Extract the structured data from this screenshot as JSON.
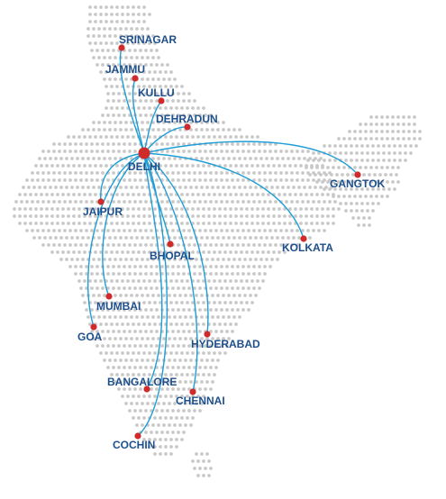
{
  "map": {
    "colors": {
      "route": "#1f9ed6",
      "city_dot": "#d02b2b",
      "label": "#1d4f8c",
      "land_dots": "#c9c9c9"
    },
    "hub": {
      "id": "delhi",
      "name": "DELHI"
    },
    "cities": [
      {
        "id": "srinagar",
        "name": "SRINAGAR"
      },
      {
        "id": "jammu",
        "name": "JAMMU"
      },
      {
        "id": "kullu",
        "name": "KULLU"
      },
      {
        "id": "dehradun",
        "name": "DEHRADUN"
      },
      {
        "id": "gangtok",
        "name": "GANGTOK"
      },
      {
        "id": "jaipur",
        "name": "JAIPUR"
      },
      {
        "id": "kolkata",
        "name": "KOLKATA"
      },
      {
        "id": "bhopal",
        "name": "BHOPAL"
      },
      {
        "id": "mumbai",
        "name": "MUMBAI"
      },
      {
        "id": "goa",
        "name": "GOA"
      },
      {
        "id": "hyderabad",
        "name": "HYDERABAD"
      },
      {
        "id": "bangalore",
        "name": "BANGALORE"
      },
      {
        "id": "chennai",
        "name": "CHENNAI"
      },
      {
        "id": "cochin",
        "name": "COCHIN"
      }
    ]
  }
}
